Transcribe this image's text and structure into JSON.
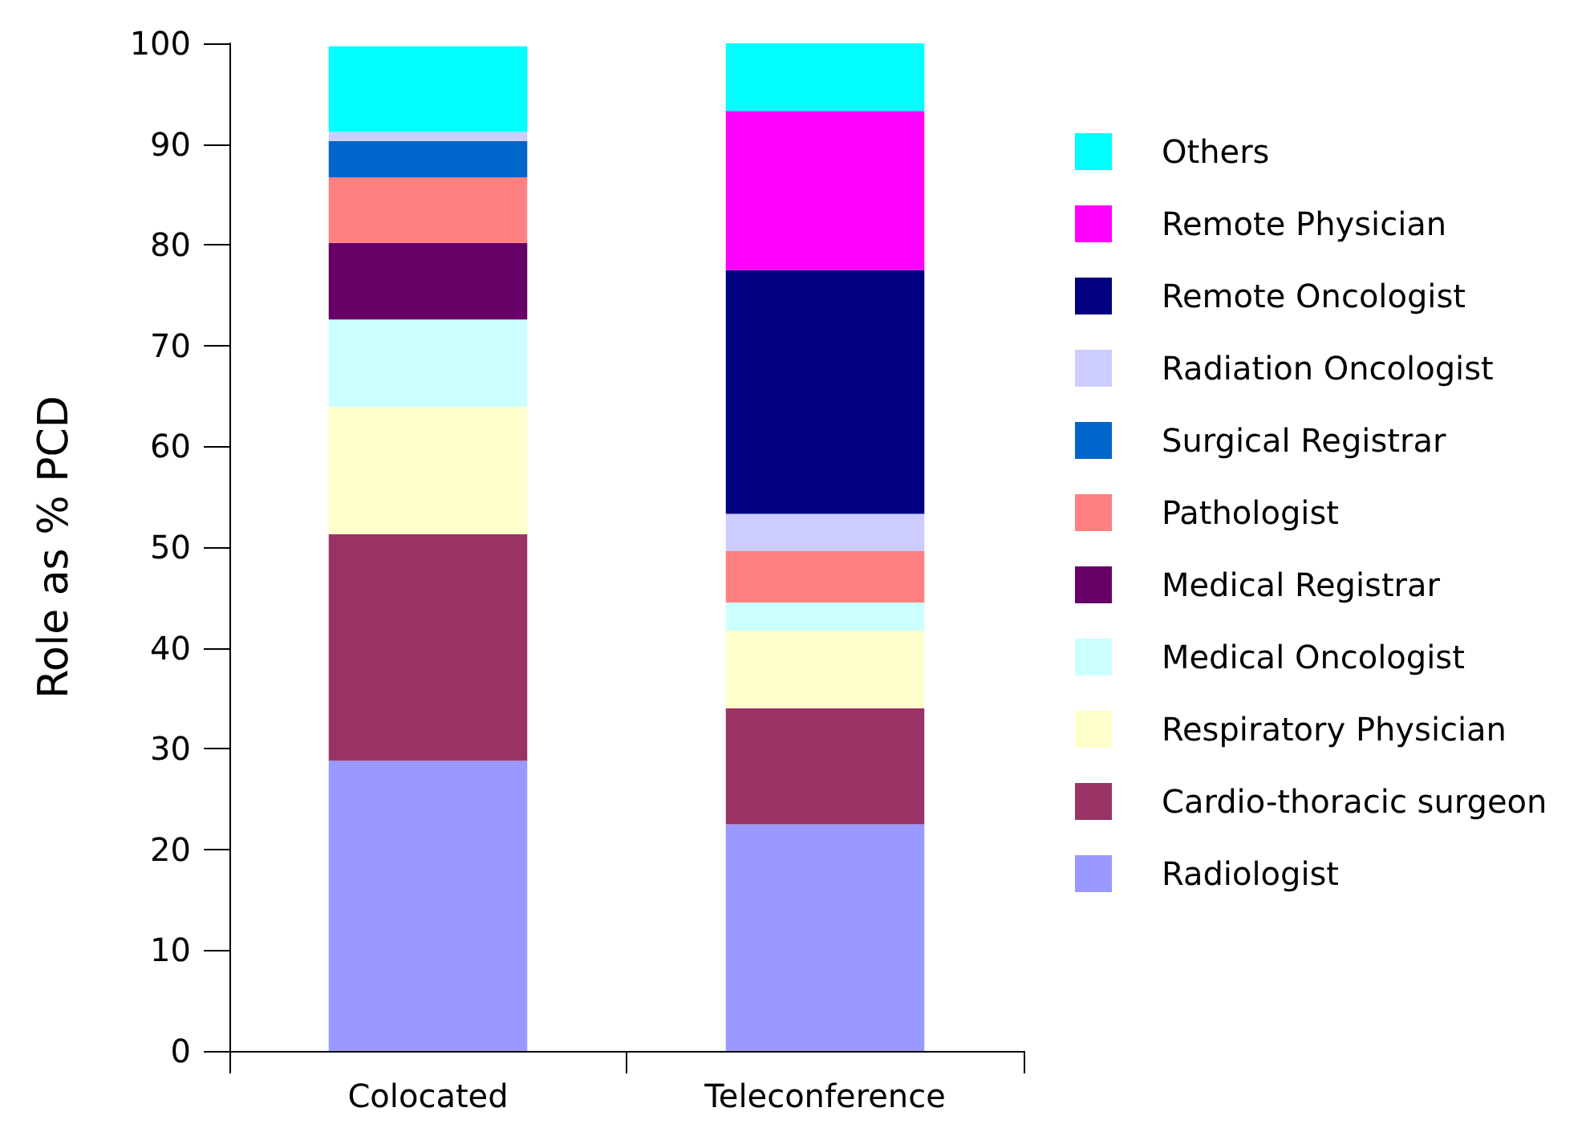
{
  "chart_data": {
    "type": "bar",
    "stacked": true,
    "ylabel": "Role as % PCD",
    "categories": [
      "Colocated",
      "Teleconference"
    ],
    "ylim": [
      0,
      100
    ],
    "yticks": [
      0,
      10,
      20,
      30,
      40,
      50,
      60,
      70,
      80,
      90,
      100
    ],
    "grid": false,
    "legend": "right",
    "series": [
      {
        "name": "Radiologist",
        "color": "#9999ff",
        "values": [
          28.8,
          22.5
        ]
      },
      {
        "name": "Cardio-thoracic surgeon",
        "color": "#993366",
        "values": [
          22.5,
          11.5
        ]
      },
      {
        "name": "Respiratory Physician",
        "color": "#ffffcc",
        "values": [
          12.6,
          7.7
        ]
      },
      {
        "name": "Medical Oncologist",
        "color": "#ccffff",
        "values": [
          8.7,
          2.8
        ]
      },
      {
        "name": "Medical Registrar",
        "color": "#660066",
        "values": [
          7.6,
          0
        ]
      },
      {
        "name": "Pathologist",
        "color": "#ff8080",
        "values": [
          6.5,
          5.1
        ]
      },
      {
        "name": "Surgical Registrar",
        "color": "#0066cc",
        "values": [
          3.6,
          0
        ]
      },
      {
        "name": "Radiation Oncologist",
        "color": "#ccccff",
        "values": [
          0.9,
          3.7
        ]
      },
      {
        "name": "Remote Oncologist",
        "color": "#000080",
        "values": [
          0,
          24.2
        ]
      },
      {
        "name": "Remote Physician",
        "color": "#ff00ff",
        "values": [
          0,
          15.8
        ]
      },
      {
        "name": "Others",
        "color": "#00ffff",
        "values": [
          8.5,
          6.7
        ]
      }
    ]
  }
}
